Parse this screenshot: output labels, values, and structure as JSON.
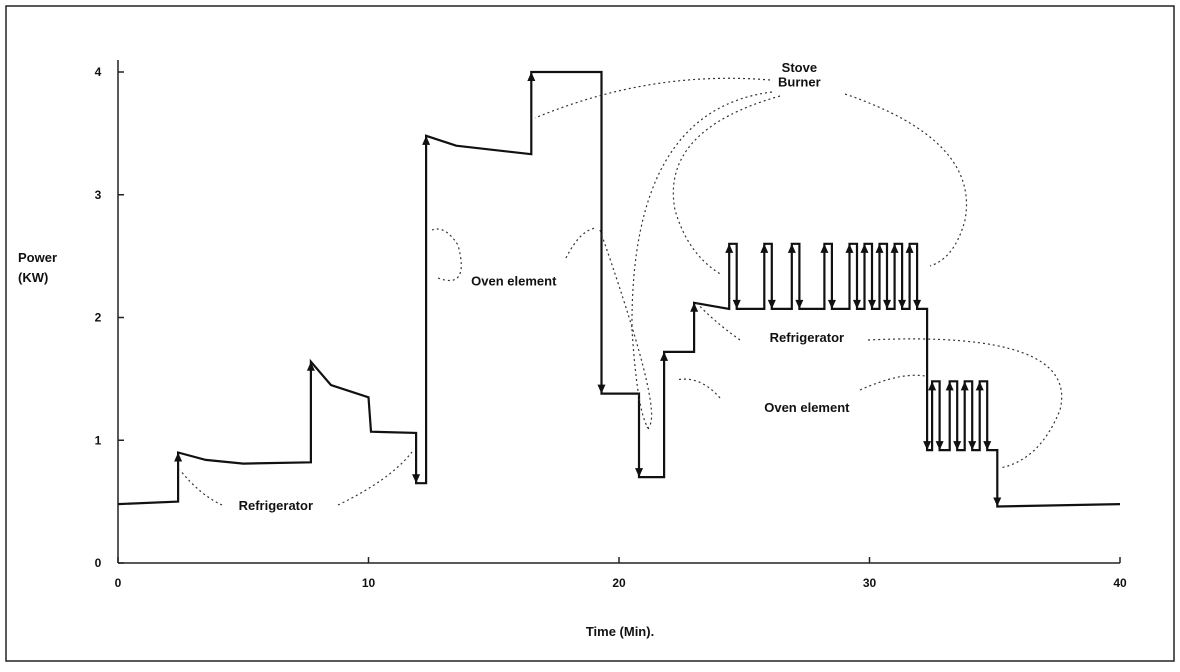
{
  "chart_data": {
    "type": "line",
    "xlabel": "Time (Min).",
    "ylabel_line1": "Power",
    "ylabel_line2": "(KW)",
    "xlim": [
      0,
      40
    ],
    "ylim": [
      0,
      4
    ],
    "x_ticks": [
      "0",
      "10",
      "20",
      "30",
      "40"
    ],
    "y_ticks": [
      "0",
      "1",
      "2",
      "3",
      "4"
    ],
    "grid": false,
    "series": [
      {
        "points": [
          [
            0,
            0.48
          ],
          [
            2.4,
            0.5
          ],
          [
            2.4,
            0.9
          ],
          [
            3.5,
            0.84
          ],
          [
            5,
            0.81
          ],
          [
            7.7,
            0.82
          ],
          [
            7.7,
            1.64
          ],
          [
            8.5,
            1.45
          ],
          [
            10,
            1.35
          ],
          [
            10.1,
            1.07
          ],
          [
            11.9,
            1.06
          ],
          [
            11.9,
            0.65
          ],
          [
            12.3,
            0.65
          ],
          [
            12.3,
            3.48
          ],
          [
            13.5,
            3.4
          ],
          [
            16.5,
            3.33
          ],
          [
            16.5,
            4.0
          ],
          [
            19.3,
            4.0
          ],
          [
            19.3,
            1.38
          ],
          [
            20.8,
            1.38
          ],
          [
            20.8,
            0.7
          ],
          [
            21.8,
            0.7
          ],
          [
            21.8,
            1.72
          ],
          [
            23.0,
            1.72
          ],
          [
            23.0,
            2.12
          ],
          [
            24.4,
            2.07
          ],
          [
            24.4,
            2.6
          ],
          [
            24.7,
            2.6
          ],
          [
            24.7,
            2.07
          ],
          [
            25.8,
            2.07
          ],
          [
            25.8,
            2.6
          ],
          [
            26.1,
            2.6
          ],
          [
            26.1,
            2.07
          ],
          [
            26.9,
            2.07
          ],
          [
            26.9,
            2.6
          ],
          [
            27.2,
            2.6
          ],
          [
            27.2,
            2.07
          ],
          [
            28.2,
            2.07
          ],
          [
            28.2,
            2.6
          ],
          [
            28.5,
            2.6
          ],
          [
            28.5,
            2.07
          ],
          [
            29.2,
            2.07
          ],
          [
            29.2,
            2.6
          ],
          [
            29.5,
            2.6
          ],
          [
            29.5,
            2.07
          ],
          [
            29.8,
            2.07
          ],
          [
            29.8,
            2.6
          ],
          [
            30.1,
            2.6
          ],
          [
            30.1,
            2.07
          ],
          [
            30.4,
            2.07
          ],
          [
            30.4,
            2.6
          ],
          [
            30.7,
            2.6
          ],
          [
            30.7,
            2.07
          ],
          [
            31.0,
            2.07
          ],
          [
            31.0,
            2.6
          ],
          [
            31.3,
            2.6
          ],
          [
            31.3,
            2.07
          ],
          [
            31.6,
            2.07
          ],
          [
            31.6,
            2.6
          ],
          [
            31.9,
            2.6
          ],
          [
            31.9,
            2.07
          ],
          [
            32.3,
            2.07
          ],
          [
            32.3,
            0.92
          ],
          [
            32.5,
            0.92
          ],
          [
            32.5,
            1.48
          ],
          [
            32.8,
            1.48
          ],
          [
            32.8,
            0.92
          ],
          [
            33.2,
            0.92
          ],
          [
            33.2,
            1.48
          ],
          [
            33.5,
            1.48
          ],
          [
            33.5,
            0.92
          ],
          [
            33.8,
            0.92
          ],
          [
            33.8,
            1.48
          ],
          [
            34.1,
            1.48
          ],
          [
            34.1,
            0.92
          ],
          [
            34.4,
            0.92
          ],
          [
            34.4,
            1.48
          ],
          [
            34.7,
            1.48
          ],
          [
            34.7,
            0.92
          ],
          [
            35.1,
            0.92
          ],
          [
            35.1,
            0.46
          ],
          [
            40,
            0.48
          ]
        ]
      }
    ],
    "annotations": [
      {
        "text": "Refrigerator",
        "x": 6.3,
        "y": 0.43
      },
      {
        "text": "Oven element",
        "x": 15.8,
        "y": 2.26
      },
      {
        "text": "Stove",
        "x": 27.2,
        "y": 4.0
      },
      {
        "text": "Burner",
        "x": 27.2,
        "y": 3.88
      },
      {
        "text": "Refrigerator",
        "x": 27.5,
        "y": 1.8
      },
      {
        "text": "Oven element",
        "x": 27.5,
        "y": 1.23
      }
    ]
  }
}
